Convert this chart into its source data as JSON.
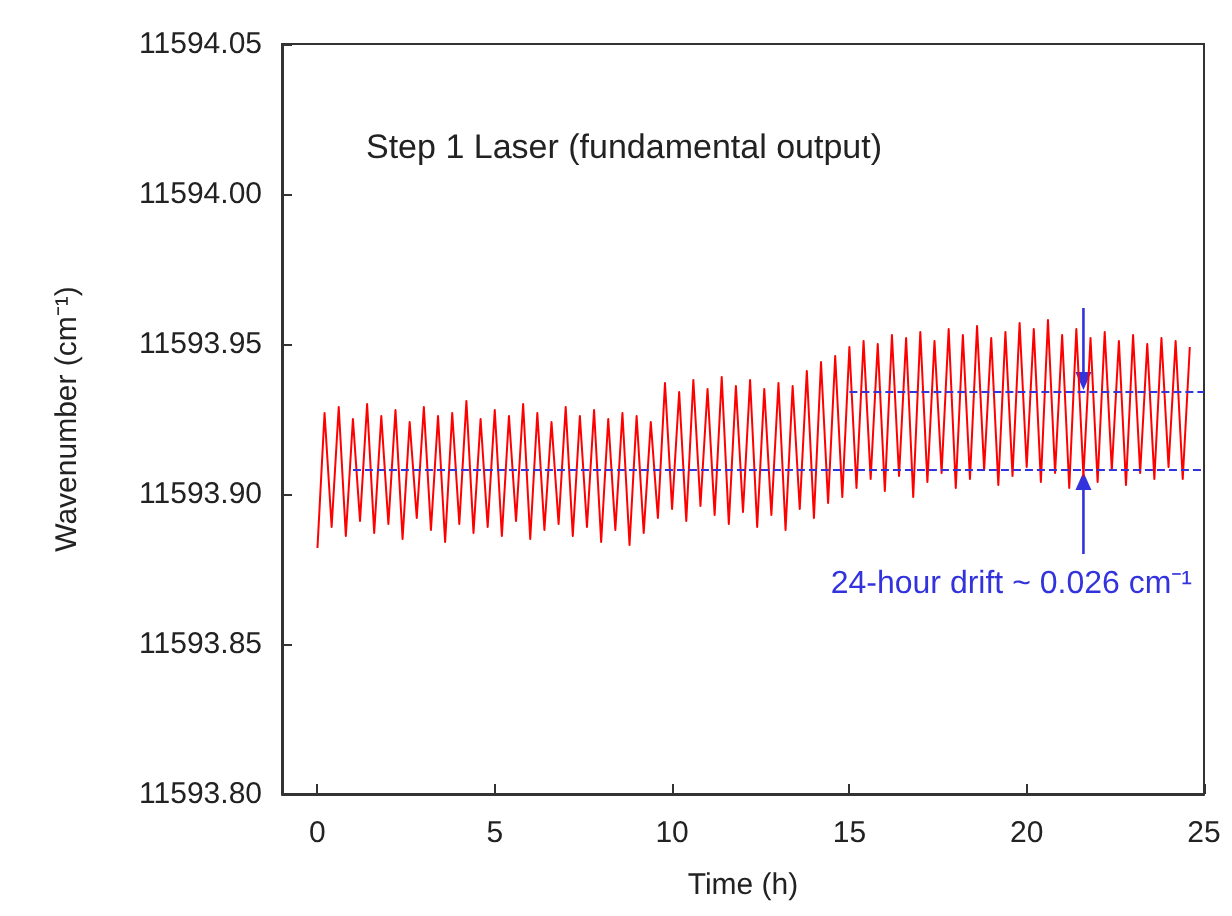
{
  "chart_data": {
    "type": "line",
    "title": "Step 1 Laser (fundamental output)",
    "xlabel": "Time (h)",
    "ylabel": "Wavenumber (cm⁻¹)",
    "xlim": [
      -1,
      25
    ],
    "xticks": [
      0,
      5,
      10,
      15,
      20,
      25
    ],
    "ylim": [
      11593.8,
      11594.05
    ],
    "yticks": [
      {
        "value": 11593.8,
        "label": "11593.80"
      },
      {
        "value": 11593.85,
        "label": "11593.85"
      },
      {
        "value": 11593.9,
        "label": "11593.90"
      },
      {
        "value": 11593.95,
        "label": "11593.95"
      },
      {
        "value": 11594.0,
        "label": "11594.00"
      },
      {
        "value": 11594.05,
        "label": "11594.05"
      }
    ],
    "grid": false,
    "marker": "none",
    "annotations": [
      {
        "text": "24-hour drift ~ 0.026 cm⁻¹",
        "x": 21.6,
        "y": 11593.908
      }
    ],
    "series": [
      {
        "color": "#ff0000",
        "x": [
          0,
          0.2,
          0.4,
          0.6,
          0.8,
          1,
          1.2,
          1.4,
          1.6,
          1.8,
          2,
          2.2,
          2.4,
          2.6,
          2.8,
          3,
          3.2,
          3.4,
          3.6,
          3.8,
          4,
          4.2,
          4.4,
          4.6,
          4.8,
          5,
          5.2,
          5.4,
          5.6,
          5.8,
          6,
          6.2,
          6.4,
          6.6,
          6.8,
          7,
          7.2,
          7.4,
          7.6,
          7.8,
          8,
          8.2,
          8.4,
          8.6,
          8.8,
          9,
          9.2,
          9.4,
          9.6,
          9.8,
          10,
          10.2,
          10.4,
          10.6,
          10.8,
          11,
          11.2,
          11.4,
          11.6,
          11.8,
          12,
          12.2,
          12.4,
          12.6,
          12.8,
          13,
          13.2,
          13.4,
          13.6,
          13.8,
          14,
          14.2,
          14.4,
          14.6,
          14.8,
          15,
          15.2,
          15.4,
          15.6,
          15.8,
          16,
          16.2,
          16.4,
          16.6,
          16.8,
          17,
          17.2,
          17.4,
          17.6,
          17.8,
          18,
          18.2,
          18.4,
          18.6,
          18.8,
          19,
          19.2,
          19.4,
          19.6,
          19.8,
          20,
          20.2,
          20.4,
          20.6,
          20.8,
          21,
          21.2,
          21.4,
          21.6,
          21.8,
          22,
          22.2,
          22.4,
          22.6,
          22.8,
          23,
          23.2,
          23.4,
          23.6,
          23.8,
          24,
          24.2,
          24.4,
          24.6
        ],
        "values": [
          11593.882,
          11593.927,
          11593.889,
          11593.929,
          11593.886,
          11593.925,
          11593.891,
          11593.93,
          11593.887,
          11593.926,
          11593.89,
          11593.928,
          11593.885,
          11593.924,
          11593.892,
          11593.929,
          11593.888,
          11593.926,
          11593.884,
          11593.927,
          11593.89,
          11593.931,
          11593.887,
          11593.925,
          11593.889,
          11593.928,
          11593.886,
          11593.926,
          11593.891,
          11593.93,
          11593.885,
          11593.927,
          11593.888,
          11593.924,
          11593.89,
          11593.929,
          11593.886,
          11593.926,
          11593.889,
          11593.928,
          11593.884,
          11593.925,
          11593.888,
          11593.927,
          11593.883,
          11593.926,
          11593.887,
          11593.924,
          11593.892,
          11593.937,
          11593.895,
          11593.934,
          11593.891,
          11593.938,
          11593.896,
          11593.935,
          11593.893,
          11593.939,
          11593.89,
          11593.936,
          11593.894,
          11593.938,
          11593.889,
          11593.935,
          11593.893,
          11593.937,
          11593.888,
          11593.936,
          11593.895,
          11593.941,
          11593.892,
          11593.944,
          11593.897,
          11593.946,
          11593.899,
          11593.949,
          11593.902,
          11593.951,
          11593.905,
          11593.95,
          11593.901,
          11593.953,
          11593.906,
          11593.952,
          11593.899,
          11593.954,
          11593.904,
          11593.951,
          11593.907,
          11593.955,
          11593.902,
          11593.953,
          11593.905,
          11593.956,
          11593.908,
          11593.952,
          11593.903,
          11593.954,
          11593.906,
          11593.957,
          11593.909,
          11593.955,
          11593.904,
          11593.958,
          11593.907,
          11593.953,
          11593.902,
          11593.955,
          11593.906,
          11593.952,
          11593.904,
          11593.954,
          11593.908,
          11593.951,
          11593.903,
          11593.953,
          11593.907,
          11593.95,
          11593.905,
          11593.952,
          11593.909,
          11593.951,
          11593.905,
          11593.949
        ]
      },
      {
        "color": "#3333dd",
        "line_style": "dashed",
        "x": [
          1,
          25
        ],
        "values": [
          11593.908,
          11593.908
        ]
      },
      {
        "color": "#3333dd",
        "line_style": "dashed",
        "x": [
          15,
          25
        ],
        "values": [
          11593.934,
          11593.934
        ]
      }
    ]
  }
}
